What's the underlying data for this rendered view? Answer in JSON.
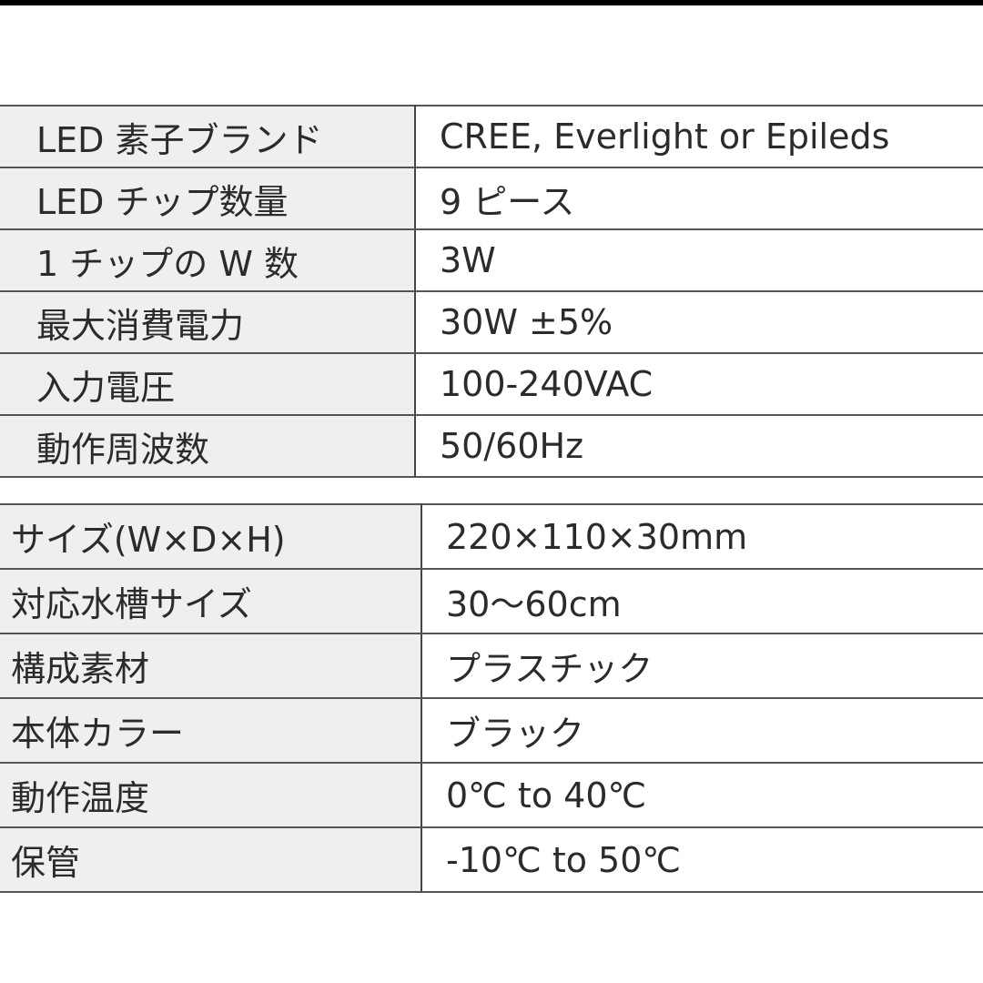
{
  "spec_table_1": [
    {
      "label": "LED 素子ブランド",
      "value": "CREE, Everlight or Epileds"
    },
    {
      "label": "LED チップ数量",
      "value": "9 ピース"
    },
    {
      "label": "1 チップの W 数",
      "value": "3W"
    },
    {
      "label": "最大消費電力",
      "value": "30W ±5%"
    },
    {
      "label": "入力電圧",
      "value": "100-240VAC"
    },
    {
      "label": "動作周波数",
      "value": "50/60Hz"
    }
  ],
  "spec_table_2": [
    {
      "label": "サイズ(W×D×H)",
      "value": "220×110×30mm"
    },
    {
      "label": "対応水槽サイズ",
      "value": "30〜60cm"
    },
    {
      "label": "構成素材",
      "value": "プラスチック"
    },
    {
      "label": "本体カラー",
      "value": "ブラック"
    },
    {
      "label": "動作温度",
      "value": "0℃ to 40℃"
    },
    {
      "label": "保管",
      "value": "-10℃ to 50℃"
    }
  ]
}
